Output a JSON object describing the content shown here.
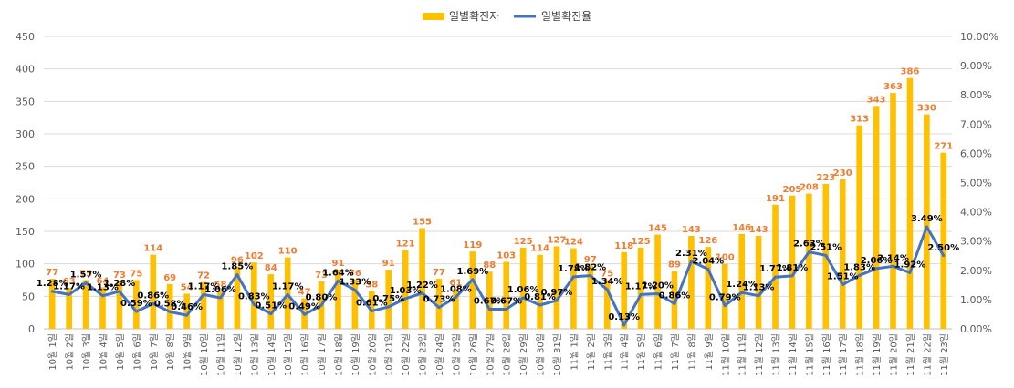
{
  "chart_data": {
    "type": "bar",
    "categories": [
      "10월 1일",
      "10월 2일",
      "10월 3일",
      "10월 4일",
      "10월 5일",
      "10월 6일",
      "10월 7일",
      "10월 8일",
      "10월 9일",
      "10월 10일",
      "10월 11일",
      "10월 12일",
      "10월 13일",
      "10월 14일",
      "10월 15일",
      "10월 16일",
      "10월 17일",
      "10월 18일",
      "10월 19일",
      "10월 20일",
      "10월 21일",
      "10월 22일",
      "10월 23일",
      "10월 24일",
      "10월 25일",
      "10월 26일",
      "10월 27일",
      "10월 28일",
      "10월 29일",
      "10월 30일",
      "10월 31일",
      "11월 1일",
      "11월 2일",
      "11월 3일",
      "11월 4일",
      "11월 5일",
      "11월 6일",
      "11월 7일",
      "11월 8일",
      "11월 9일",
      "11월 10일",
      "11월 11일",
      "11월 12일",
      "11월 13일",
      "11월 14일",
      "11월 15일",
      "11월 16일",
      "11월 17일",
      "11월 18일",
      "11월 19일",
      "11월 20일",
      "11월 21일",
      "11월 22일",
      "11월 23일"
    ],
    "series": [
      {
        "name": "일별확진자",
        "type": "bar",
        "axis": "left",
        "color": "#FFC000",
        "label_color": "#ED7D31",
        "values": [
          77,
          63,
          75,
          64,
          73,
          75,
          114,
          69,
          54,
          72,
          58,
          96,
          102,
          84,
          110,
          47,
          73,
          91,
          76,
          58,
          91,
          121,
          155,
          77,
          61,
          119,
          88,
          103,
          125,
          114,
          127,
          124,
          97,
          75,
          118,
          125,
          145,
          89,
          143,
          126,
          100,
          146,
          143,
          191,
          205,
          208,
          223,
          230,
          313,
          343,
          363,
          386,
          330,
          271
        ],
        "labels": [
          "77",
          "63",
          "75",
          "64",
          "73",
          "75",
          "114",
          "69",
          "54",
          "72",
          "58",
          "96",
          "102",
          "84",
          "110",
          "47",
          "73",
          "91",
          "76",
          "58",
          "91",
          "121",
          "155",
          "77",
          "61",
          "119",
          "88",
          "103",
          "125",
          "114",
          "127",
          "124",
          "97",
          "75",
          "118",
          "125",
          "145",
          "89",
          "143",
          "126",
          "100",
          "146",
          "143",
          "191",
          "205",
          "208",
          "223",
          "230",
          "313",
          "343",
          "363",
          "386",
          "330",
          "271"
        ]
      },
      {
        "name": "일별확진율",
        "type": "line",
        "axis": "right",
        "color": "#4472C4",
        "values": [
          1.28,
          1.17,
          1.57,
          1.13,
          1.28,
          0.59,
          0.86,
          0.58,
          0.46,
          1.17,
          1.06,
          1.85,
          0.83,
          0.51,
          1.17,
          0.49,
          0.8,
          1.64,
          1.33,
          0.61,
          0.75,
          1.03,
          1.22,
          0.73,
          1.08,
          1.69,
          0.67,
          0.67,
          1.06,
          0.81,
          0.97,
          1.78,
          1.82,
          1.34,
          0.13,
          1.17,
          1.2,
          0.86,
          2.31,
          2.04,
          0.79,
          1.24,
          1.13,
          1.77,
          1.81,
          2.63,
          2.51,
          1.51,
          1.83,
          2.06,
          2.14,
          1.92,
          3.49,
          2.5
        ],
        "labels": [
          "1.28%",
          "1.17%",
          "1.57%",
          "1.13%",
          "1.28%",
          "0.59%",
          "0.86%",
          "0.58%",
          "0.46%",
          "1.17%",
          "1.06%",
          "1.85%",
          "0.83%",
          "0.51%",
          "1.17%",
          "0.49%",
          "0.80%",
          "1.64%",
          "1.33%",
          "0.61%",
          "0.75%",
          "1.03%",
          "1.22%",
          "0.73%",
          "1.08%",
          "1.69%",
          "0.67%",
          "0.67%",
          "1.06%",
          "0.81%",
          "0.97%",
          "1.78%",
          "1.82%",
          "1.34%",
          "0.13%",
          "1.17%",
          "1.20%",
          "0.86%",
          "2.31%",
          "2.04%",
          "0.79%",
          "1.24%",
          "1.13%",
          "1.77%",
          "1.81%",
          "2.63%",
          "2.51%",
          "1.51%",
          "1.83%",
          "2.06%",
          "2.14%",
          "1.92%",
          "3.49%",
          "2.50%"
        ]
      }
    ],
    "y_left": {
      "lim": [
        0,
        450
      ],
      "ticks": [
        "0",
        "50",
        "100",
        "150",
        "200",
        "250",
        "300",
        "350",
        "400",
        "450"
      ]
    },
    "y_right": {
      "lim": [
        0,
        10
      ],
      "ticks": [
        "0.00%",
        "1.00%",
        "2.00%",
        "3.00%",
        "4.00%",
        "5.00%",
        "6.00%",
        "7.00%",
        "8.00%",
        "9.00%",
        "10.00%"
      ]
    },
    "legend": {
      "position": "top-center",
      "items": [
        "일별확진자",
        "일별확진율"
      ]
    },
    "grid": true,
    "title": "",
    "xlabel": "",
    "ylabel": ""
  }
}
